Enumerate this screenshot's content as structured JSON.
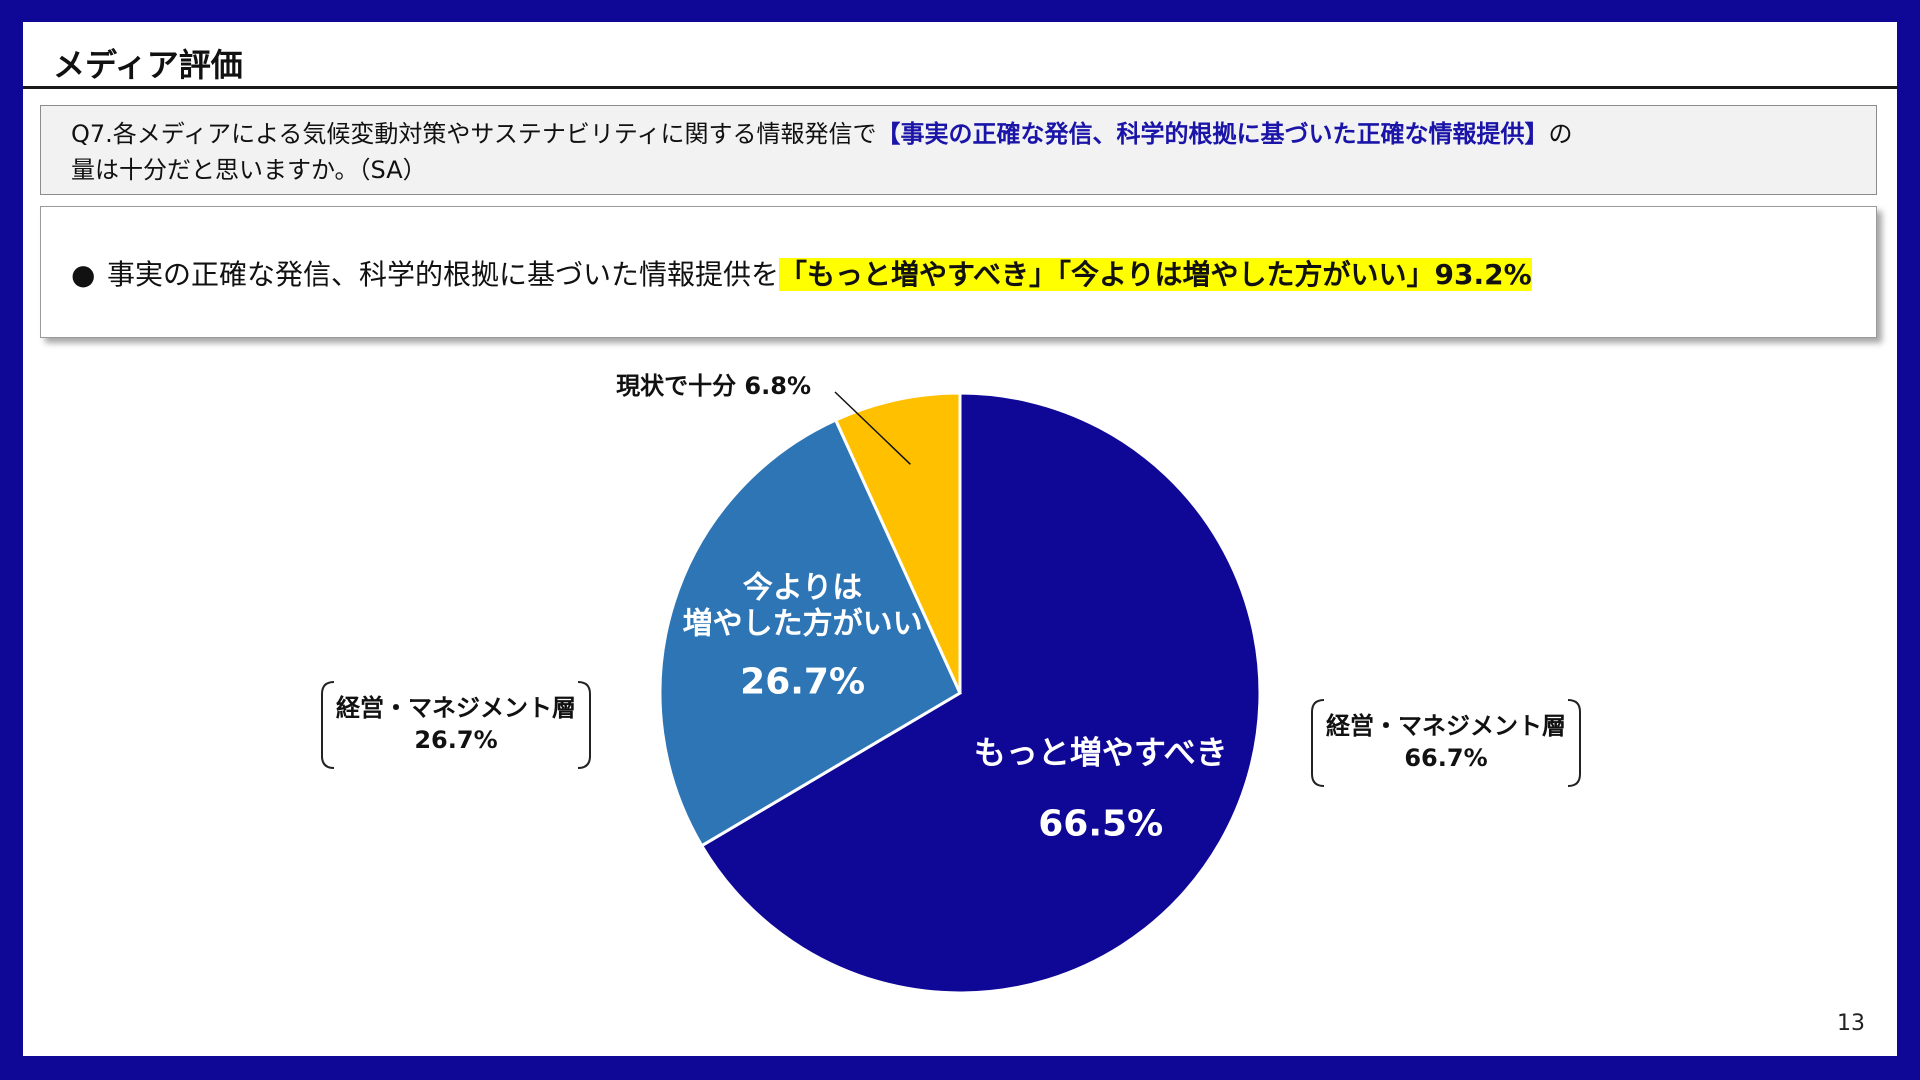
{
  "header": {
    "title": "メディア評価",
    "page_number": "13"
  },
  "question": {
    "prefix": "Q7.各メディアによる気候変動対策やサステナビリティに関する情報発信で",
    "highlight": "【事実の正確な発信、科学的根拠に基づいた正確な情報提供】",
    "suffix_line1": "の",
    "line2": "量は十分だと思いますか。（SA）"
  },
  "summary": {
    "bullet": "●",
    "text": "事実の正確な発信、科学的根拠に基づいた情報提供を",
    "highlight": "「もっと増やすべき」「今よりは増やした方がいい」93.2%"
  },
  "callouts": {
    "left": {
      "line1": "経営・マネジメント層",
      "line2": "26.7%"
    },
    "right": {
      "line1": "経営・マネジメント層",
      "line2": "66.7%"
    }
  },
  "colors": {
    "frame": "#0f0896",
    "navy": "#0f0896",
    "blue": "#2e75b6",
    "yellow": "#ffc000",
    "question_highlight": "#1a14a8",
    "marker": "#ffff00"
  },
  "chart_data": {
    "type": "pie",
    "title": "",
    "start_angle_deg": 0,
    "direction": "clockwise",
    "slices": [
      {
        "label": "もっと増やすべき",
        "label_lines": [
          "もっと増やすべき"
        ],
        "value": 66.5,
        "value_text": "66.5%",
        "color": "#0f0896"
      },
      {
        "label": "今よりは増やした方がいい",
        "label_lines": [
          "今よりは",
          "増やした方がいい"
        ],
        "value": 26.7,
        "value_text": "26.7%",
        "color": "#2e75b6"
      },
      {
        "label": "現状で十分",
        "label_lines": [
          "現状で十分"
        ],
        "value": 6.8,
        "value_text": "6.8%",
        "color": "#ffc000"
      }
    ],
    "legend": "none"
  }
}
